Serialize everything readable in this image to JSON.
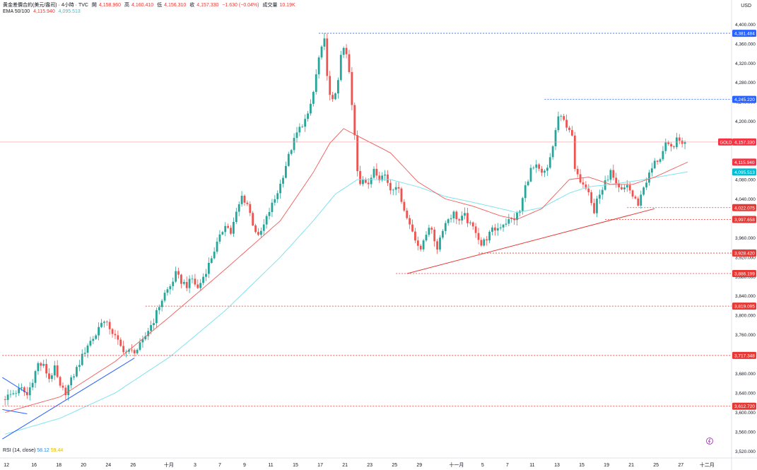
{
  "header": {
    "symbol": "黄金差價合約(美元/盎司) · 4小時 · TVC",
    "open_label": "開",
    "open": "4,158.960",
    "high_label": "高",
    "high": "4,160.410",
    "low_label": "低",
    "low": "4,156.310",
    "close_label": "收",
    "close": "4,157.330",
    "change": "−1.630 (−0.04%)",
    "volume_label": "成交量",
    "volume": "10.19K",
    "ema_label": "EMA 50/100",
    "ema50": "4,115.940",
    "ema100": "4,095.513"
  },
  "currency": "USD",
  "rsi": {
    "label": "RSI (14, close)",
    "v1": "58.12",
    "v2": "59.44"
  },
  "chart_data": {
    "type": "candlestick",
    "title": "黄金差價合約(美元/盎司) · 4小時 · TVC",
    "ylim": [
      3506,
      4418
    ],
    "y_ticks": [
      3520,
      3560,
      3600,
      3640,
      3680,
      3720,
      3760,
      3800,
      3840,
      3880,
      3920,
      3960,
      4000,
      4040,
      4080,
      4120,
      4160,
      4200,
      4240,
      4280,
      4320,
      4360,
      4400
    ],
    "x_ticks": [
      {
        "label": "12",
        "pos": 0.5
      },
      {
        "label": "16",
        "pos": 10.5
      },
      {
        "label": "18",
        "pos": 19.5
      },
      {
        "label": "20",
        "pos": 28.5
      },
      {
        "label": "24",
        "pos": 37.5
      },
      {
        "label": "26",
        "pos": 46.5
      },
      {
        "label": "十月",
        "pos": 59.5
      },
      {
        "label": "3",
        "pos": 69
      },
      {
        "label": "7",
        "pos": 78
      },
      {
        "label": "9",
        "pos": 87
      },
      {
        "label": "11",
        "pos": 96.5
      },
      {
        "label": "15",
        "pos": 105.5
      },
      {
        "label": "17",
        "pos": 114.5
      },
      {
        "label": "21",
        "pos": 123.5
      },
      {
        "label": "23",
        "pos": 132.5
      },
      {
        "label": "25",
        "pos": 141.5
      },
      {
        "label": "29",
        "pos": 150.5
      },
      {
        "label": "十一月",
        "pos": 164
      },
      {
        "label": "5",
        "pos": 173.5
      },
      {
        "label": "7",
        "pos": 182.5
      },
      {
        "label": "11",
        "pos": 191.5
      },
      {
        "label": "13",
        "pos": 200.5
      },
      {
        "label": "15",
        "pos": 209.5
      },
      {
        "label": "19",
        "pos": 218.5
      },
      {
        "label": "21",
        "pos": 227.5
      },
      {
        "label": "25",
        "pos": 236.5
      },
      {
        "label": "27",
        "pos": 245.5
      },
      {
        "label": "十二月",
        "pos": 255
      }
    ],
    "anchors": [
      [
        0,
        3630
      ],
      [
        3,
        3640
      ],
      [
        6,
        3648
      ],
      [
        8,
        3635
      ],
      [
        12,
        3700
      ],
      [
        14,
        3695
      ],
      [
        16,
        3670
      ],
      [
        18,
        3690
      ],
      [
        20,
        3650
      ],
      [
        22,
        3642
      ],
      [
        26,
        3690
      ],
      [
        30,
        3740
      ],
      [
        33,
        3760
      ],
      [
        35,
        3790
      ],
      [
        38,
        3775
      ],
      [
        40,
        3755
      ],
      [
        42,
        3735
      ],
      [
        44,
        3725
      ],
      [
        46,
        3725
      ],
      [
        48,
        3730
      ],
      [
        50,
        3745
      ],
      [
        52,
        3770
      ],
      [
        54,
        3790
      ],
      [
        56,
        3820
      ],
      [
        58,
        3845
      ],
      [
        60,
        3860
      ],
      [
        62,
        3885
      ],
      [
        64,
        3870
      ],
      [
        66,
        3862
      ],
      [
        68,
        3875
      ],
      [
        70,
        3855
      ],
      [
        72,
        3880
      ],
      [
        74,
        3905
      ],
      [
        76,
        3935
      ],
      [
        78,
        3960
      ],
      [
        80,
        3990
      ],
      [
        82,
        3970
      ],
      [
        84,
        4010
      ],
      [
        86,
        4045
      ],
      [
        88,
        4030
      ],
      [
        90,
        3990
      ],
      [
        92,
        3960
      ],
      [
        94,
        3985
      ],
      [
        96,
        4015
      ],
      [
        98,
        4040
      ],
      [
        100,
        4070
      ],
      [
        102,
        4110
      ],
      [
        104,
        4145
      ],
      [
        106,
        4175
      ],
      [
        108,
        4195
      ],
      [
        110,
        4210
      ],
      [
        112,
        4260
      ],
      [
        114,
        4330
      ],
      [
        116,
        4365
      ],
      [
        117,
        4300
      ],
      [
        118,
        4250
      ],
      [
        119,
        4240
      ],
      [
        120,
        4260
      ],
      [
        121,
        4290
      ],
      [
        122,
        4330
      ],
      [
        123,
        4350
      ],
      [
        124,
        4335
      ],
      [
        125,
        4300
      ],
      [
        126,
        4230
      ],
      [
        127,
        4170
      ],
      [
        128,
        4100
      ],
      [
        129,
        4075
      ],
      [
        130,
        4085
      ],
      [
        132,
        4065
      ],
      [
        134,
        4105
      ],
      [
        136,
        4085
      ],
      [
        138,
        4090
      ],
      [
        140,
        4060
      ],
      [
        142,
        4070
      ],
      [
        144,
        4040
      ],
      [
        146,
        4000
      ],
      [
        148,
        3975
      ],
      [
        150,
        3945
      ],
      [
        151,
        3930
      ],
      [
        152,
        3955
      ],
      [
        154,
        3985
      ],
      [
        155,
        3970
      ],
      [
        157,
        3940
      ],
      [
        159,
        3980
      ],
      [
        161,
        4000
      ],
      [
        163,
        4010
      ],
      [
        165,
        3995
      ],
      [
        167,
        4005
      ],
      [
        169,
        3985
      ],
      [
        171,
        3975
      ],
      [
        173,
        3945
      ],
      [
        175,
        3960
      ],
      [
        177,
        3975
      ],
      [
        179,
        3980
      ],
      [
        181,
        3990
      ],
      [
        183,
        3995
      ],
      [
        185,
        4000
      ],
      [
        187,
        4015
      ],
      [
        189,
        4065
      ],
      [
        191,
        4100
      ],
      [
        193,
        4105
      ],
      [
        195,
        4090
      ],
      [
        197,
        4100
      ],
      [
        199,
        4150
      ],
      [
        201,
        4210
      ],
      [
        203,
        4200
      ],
      [
        205,
        4185
      ],
      [
        206,
        4165
      ],
      [
        207,
        4100
      ],
      [
        208,
        4085
      ],
      [
        210,
        4075
      ],
      [
        212,
        4060
      ],
      [
        214,
        4010
      ],
      [
        215,
        4040
      ],
      [
        217,
        4060
      ],
      [
        219,
        4085
      ],
      [
        220,
        4095
      ],
      [
        222,
        4065
      ],
      [
        224,
        4055
      ],
      [
        226,
        4070
      ],
      [
        228,
        4045
      ],
      [
        230,
        4030
      ],
      [
        232,
        4065
      ],
      [
        234,
        4090
      ],
      [
        236,
        4115
      ],
      [
        238,
        4125
      ],
      [
        240,
        4150
      ],
      [
        242,
        4145
      ],
      [
        244,
        4160
      ],
      [
        246,
        4158
      ],
      [
        247,
        4157.33
      ]
    ],
    "ema50_curve": [
      [
        0,
        3600
      ],
      [
        20,
        3632
      ],
      [
        40,
        3705
      ],
      [
        60,
        3798
      ],
      [
        80,
        3895
      ],
      [
        100,
        3995
      ],
      [
        112,
        4095
      ],
      [
        118,
        4155
      ],
      [
        123,
        4185
      ],
      [
        128,
        4170
      ],
      [
        140,
        4135
      ],
      [
        150,
        4075
      ],
      [
        160,
        4040
      ],
      [
        170,
        4025
      ],
      [
        180,
        4005
      ],
      [
        186,
        3998
      ],
      [
        195,
        4020
      ],
      [
        205,
        4080
      ],
      [
        212,
        4085
      ],
      [
        220,
        4070
      ],
      [
        228,
        4070
      ],
      [
        236,
        4085
      ],
      [
        248,
        4116
      ]
    ],
    "ema100_curve": [
      [
        0,
        3555
      ],
      [
        20,
        3588
      ],
      [
        40,
        3640
      ],
      [
        60,
        3715
      ],
      [
        80,
        3810
      ],
      [
        100,
        3920
      ],
      [
        112,
        3995
      ],
      [
        120,
        4050
      ],
      [
        128,
        4080
      ],
      [
        140,
        4080
      ],
      [
        150,
        4065
      ],
      [
        160,
        4045
      ],
      [
        170,
        4033
      ],
      [
        180,
        4020
      ],
      [
        186,
        4012
      ],
      [
        195,
        4022
      ],
      [
        205,
        4052
      ],
      [
        212,
        4065
      ],
      [
        220,
        4070
      ],
      [
        230,
        4078
      ],
      [
        240,
        4088
      ],
      [
        248,
        4096
      ]
    ],
    "trendlines": [
      {
        "color": "#e53935",
        "from": [
          146,
          3886
        ],
        "to": [
          236,
          4020
        ]
      },
      {
        "color": "#2962ff",
        "from": [
          -1,
          3545
        ],
        "to": [
          47,
          3712
        ]
      },
      {
        "color": "#2962ff",
        "from": [
          -1,
          3672
        ],
        "to": [
          8,
          3640
        ]
      },
      {
        "color": "#2962ff",
        "from": [
          -1,
          3606
        ],
        "to": [
          8,
          3597
        ]
      }
    ],
    "horizontal_levels": [
      {
        "value": 4381.484,
        "label": "4,381.484",
        "style": "blue",
        "from": 114
      },
      {
        "value": 4245.22,
        "label": "4,245.220",
        "style": "blue",
        "from": 196
      },
      {
        "value": 4115.94,
        "label": "4,115.940",
        "style": "ema50"
      },
      {
        "value": 4095.513,
        "label": "4,095.513",
        "style": "ema100"
      },
      {
        "value": 4022.075,
        "label": "4,022.075",
        "style": "red",
        "from": 226
      },
      {
        "value": 3997.658,
        "label": "3,997.658",
        "style": "red",
        "from": 218
      },
      {
        "value": 3928.42,
        "label": "3,928.420",
        "style": "red",
        "from": 172
      },
      {
        "value": 3886.199,
        "label": "3,886.199",
        "style": "red",
        "from": 142
      },
      {
        "value": 3819.095,
        "label": "3,819.095",
        "style": "red",
        "from": 51
      },
      {
        "value": 3717.348,
        "label": "3,717.348",
        "style": "red",
        "from": -1
      },
      {
        "value": 3612.72,
        "label": "3,612.720",
        "style": "red",
        "from": -1
      }
    ],
    "current_price": {
      "symbol": "GOLD",
      "value": 4157.33,
      "label": "4,157.330"
    }
  }
}
